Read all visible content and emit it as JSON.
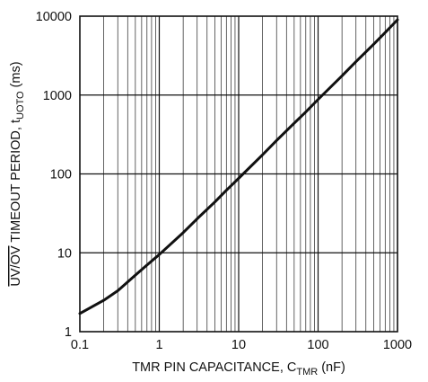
{
  "chart_data": {
    "type": "line",
    "title": "",
    "x_scale": "log",
    "y_scale": "log",
    "xlim": [
      0.1,
      1000
    ],
    "ylim": [
      1,
      10000
    ],
    "grid": true,
    "x_ticks": [
      0.1,
      1,
      10,
      100,
      1000
    ],
    "x_tick_labels": [
      "0.1",
      "1",
      "10",
      "100",
      "1000"
    ],
    "y_ticks": [
      1,
      10,
      100,
      1000,
      10000
    ],
    "y_tick_labels": [
      "1",
      "10",
      "100",
      "1000",
      "10000"
    ],
    "xlabel": {
      "main": "TMR PIN CAPACITANCE, C",
      "sub": "TMR",
      "unit": " (nF)"
    },
    "ylabel": {
      "overline": "UV/OV",
      "main": " TIMEOUT PERIOD, t",
      "sub": "UOTO",
      "unit": " (ms)"
    },
    "series": [
      {
        "x": [
          0.1,
          0.2,
          0.3,
          0.5,
          0.7,
          1,
          2,
          3,
          5,
          7,
          10,
          20,
          30,
          50,
          70,
          100,
          200,
          300,
          500,
          700,
          1000
        ],
        "y": [
          1.7,
          2.5,
          3.3,
          5.2,
          7.0,
          9.5,
          18,
          27,
          44,
          62,
          88,
          175,
          265,
          440,
          610,
          880,
          1750,
          2650,
          4400,
          6200,
          9000
        ]
      }
    ]
  }
}
